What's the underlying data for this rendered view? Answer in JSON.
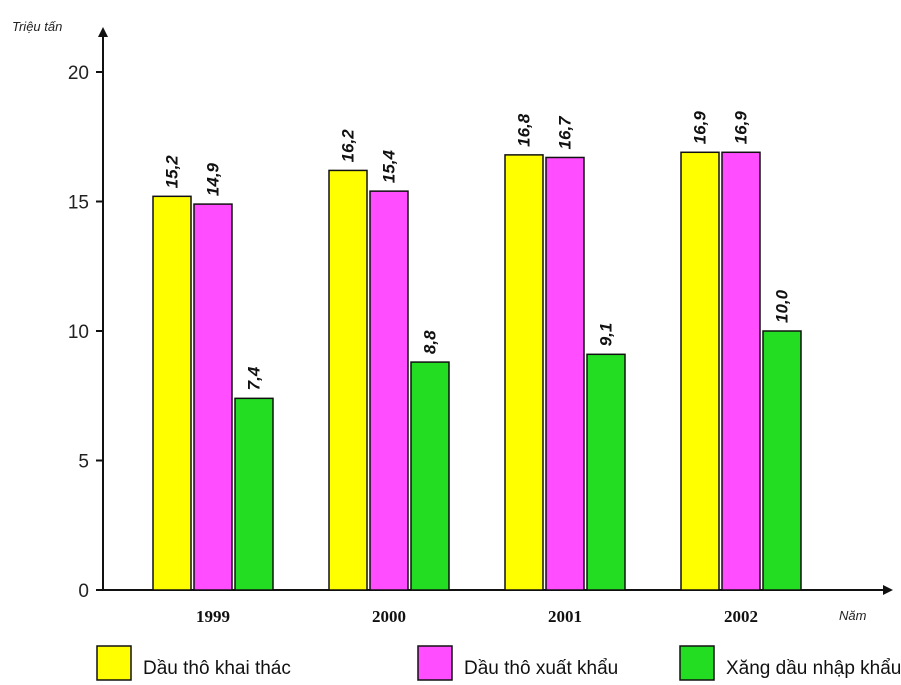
{
  "chart_data": {
    "type": "bar",
    "ylabel": "Triệu tấn",
    "xlabel": "Năm",
    "categories": [
      "1999",
      "2000",
      "2001",
      "2002"
    ],
    "ylim": [
      0,
      20
    ],
    "yticks": [
      0,
      5,
      10,
      15,
      20
    ],
    "series": [
      {
        "name": "Dầu thô khai thác",
        "color": "#ffff00",
        "values": [
          15.2,
          16.2,
          16.8,
          16.9
        ],
        "labels": [
          "15,2",
          "16,2",
          "16,8",
          "16,9"
        ]
      },
      {
        "name": "Dầu thô xuất khẩu",
        "color": "#ff4dff",
        "values": [
          14.9,
          15.4,
          16.7,
          16.9
        ],
        "labels": [
          "14,9",
          "15,4",
          "16,7",
          "16,9"
        ]
      },
      {
        "name": "Xăng dầu nhập khẩu",
        "color": "#22dd22",
        "values": [
          7.4,
          8.8,
          9.1,
          10.0
        ],
        "labels": [
          "7,4",
          "8,8",
          "9,1",
          "10,0"
        ]
      }
    ],
    "grid": false,
    "legend": "bottom"
  }
}
